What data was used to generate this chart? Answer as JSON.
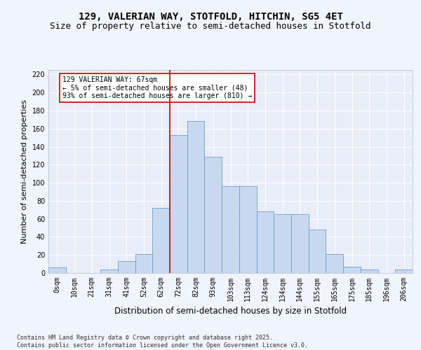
{
  "title1": "129, VALERIAN WAY, STOTFOLD, HITCHIN, SG5 4ET",
  "title2": "Size of property relative to semi-detached houses in Stotfold",
  "xlabel": "Distribution of semi-detached houses by size in Stotfold",
  "ylabel": "Number of semi-detached properties",
  "categories": [
    "0sqm",
    "10sqm",
    "21sqm",
    "31sqm",
    "41sqm",
    "52sqm",
    "62sqm",
    "72sqm",
    "82sqm",
    "93sqm",
    "103sqm",
    "113sqm",
    "124sqm",
    "134sqm",
    "144sqm",
    "155sqm",
    "165sqm",
    "175sqm",
    "185sqm",
    "196sqm",
    "206sqm"
  ],
  "values": [
    6,
    0,
    0,
    4,
    13,
    21,
    72,
    153,
    168,
    129,
    96,
    96,
    68,
    65,
    65,
    48,
    21,
    7,
    4,
    0,
    4
  ],
  "bar_color": "#c8d9ef",
  "bar_edge_color": "#6b9fcc",
  "vline_color": "#cc0000",
  "annotation_text": "129 VALERIAN WAY: 67sqm\n← 5% of semi-detached houses are smaller (48)\n93% of semi-detached houses are larger (810) →",
  "annotation_box_color": "#ffffff",
  "annotation_box_edge": "#cc0000",
  "ylim": [
    0,
    225
  ],
  "yticks": [
    0,
    20,
    40,
    60,
    80,
    100,
    120,
    140,
    160,
    180,
    200,
    220
  ],
  "background_color": "#e8edf8",
  "grid_color": "#ffffff",
  "footer_text": "Contains HM Land Registry data © Crown copyright and database right 2025.\nContains public sector information licensed under the Open Government Licence v3.0.",
  "title_fontsize": 10,
  "subtitle_fontsize": 9,
  "tick_fontsize": 7,
  "ylabel_fontsize": 8,
  "xlabel_fontsize": 8.5,
  "footer_fontsize": 6
}
